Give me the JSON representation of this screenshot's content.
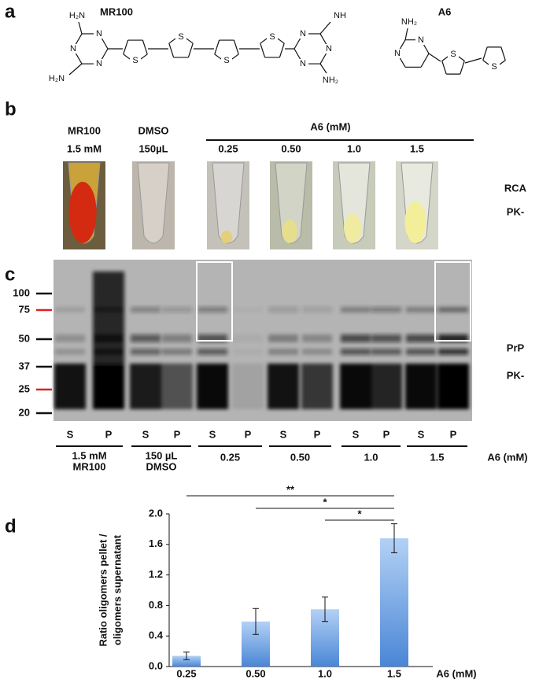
{
  "panels": {
    "a": {
      "letter": "a",
      "molecules": [
        {
          "name": "MR100",
          "atoms": [
            "H₂N",
            "N",
            "N",
            "N",
            "H₂N",
            "S",
            "S",
            "S",
            "S",
            "N",
            "N",
            "N",
            "NH",
            "NH₂"
          ]
        },
        {
          "name": "A6",
          "atoms": [
            "NH₂",
            "N",
            "N",
            "S",
            "S"
          ]
        }
      ]
    },
    "b": {
      "letter": "b",
      "controls": [
        [
          "MR100",
          "1.5 mM"
        ],
        [
          "DMSO",
          "150µL"
        ]
      ],
      "group_label": "A6 (mM)",
      "concentrations": [
        "0.25",
        "0.50",
        "1.0",
        "1.5"
      ],
      "side_labels": [
        "RCA",
        "PK-"
      ]
    },
    "c": {
      "letter": "c",
      "markers": [
        "100",
        "75",
        "50",
        "37",
        "25",
        "20"
      ],
      "lanes": [
        "S",
        "P",
        "S",
        "P",
        "S",
        "P",
        "S",
        "P",
        "S",
        "P",
        "S",
        "P"
      ],
      "groups": [
        [
          "1.5 mM",
          "MR100"
        ],
        [
          "150 µL",
          "DMSO"
        ],
        [
          "0.25"
        ],
        [
          "0.50"
        ],
        [
          "1.0"
        ],
        [
          "1.5"
        ]
      ],
      "axis_label": "A6 (mM)",
      "side_labels": [
        "PrP",
        "PK-"
      ]
    }
  },
  "chart_data": {
    "type": "bar",
    "letter": "d",
    "categories": [
      "0.25",
      "0.50",
      "1.0",
      "1.5"
    ],
    "values": [
      0.14,
      0.59,
      0.75,
      1.68
    ],
    "errors": [
      0.05,
      0.17,
      0.16,
      0.19
    ],
    "ylim": [
      0,
      2.0
    ],
    "yticks": [
      {
        "value": 0,
        "label": "0.0"
      },
      0.4,
      0.8,
      1.2,
      1.6,
      {
        "value": 2,
        "label": "2.0"
      }
    ],
    "y_label": [
      "Ratio oligomers pellet /",
      "oligomers supernatant"
    ],
    "x_label": "A6 (mM)",
    "significance": [
      "**",
      "*",
      "*"
    ],
    "color_top": "#b3d1f5",
    "color_bottom": "#4a86d6"
  }
}
